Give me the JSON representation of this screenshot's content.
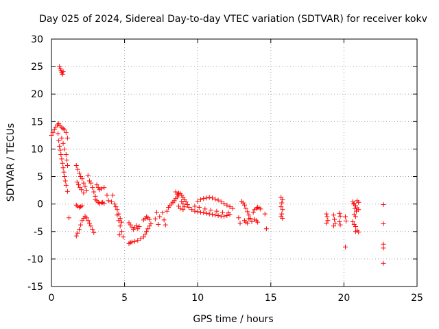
{
  "chart_data": {
    "type": "scatter",
    "title": "Day 025 of 2024, Sidereal Day-to-day VTEC variation (SDTVAR) for receiver kokv",
    "xlabel": "GPS time / hours",
    "ylabel": "SDTVAR / TECUs",
    "xlim": [
      0,
      25
    ],
    "ylim": [
      -15,
      30
    ],
    "xticks": [
      "0",
      "5",
      "10",
      "15",
      "20",
      "25"
    ],
    "yticks": [
      "-15",
      "-10",
      "-5",
      "0",
      "5",
      "10",
      "15",
      "20",
      "25",
      "30"
    ],
    "grid": true,
    "marker": "+",
    "marker_color": "#ff0000",
    "series": [
      {
        "name": "SDTVAR",
        "points": [
          [
            0.0,
            12.5
          ],
          [
            0.1,
            13.0
          ],
          [
            0.2,
            13.6
          ],
          [
            0.3,
            14.0
          ],
          [
            0.4,
            14.4
          ],
          [
            0.5,
            14.6
          ],
          [
            0.6,
            14.2
          ],
          [
            0.7,
            13.9
          ],
          [
            0.8,
            13.7
          ],
          [
            0.9,
            13.5
          ],
          [
            1.0,
            13.0
          ],
          [
            1.1,
            12.0
          ],
          [
            0.45,
            12.8
          ],
          [
            0.5,
            11.5
          ],
          [
            0.55,
            10.5
          ],
          [
            0.6,
            9.8
          ],
          [
            0.65,
            9.0
          ],
          [
            0.7,
            8.2
          ],
          [
            0.75,
            7.4
          ],
          [
            0.8,
            6.6
          ],
          [
            0.85,
            5.8
          ],
          [
            0.9,
            5.0
          ],
          [
            0.95,
            4.2
          ],
          [
            1.0,
            3.4
          ],
          [
            1.1,
            2.3
          ],
          [
            0.7,
            12.0
          ],
          [
            0.8,
            11.0
          ],
          [
            0.9,
            10.0
          ],
          [
            1.0,
            9.0
          ],
          [
            1.05,
            8.0
          ],
          [
            1.1,
            7.0
          ],
          [
            0.55,
            25.0
          ],
          [
            0.6,
            24.6
          ],
          [
            0.65,
            24.3
          ],
          [
            0.7,
            23.9
          ],
          [
            0.75,
            23.6
          ],
          [
            0.8,
            24.1
          ],
          [
            1.2,
            -2.5
          ],
          [
            1.7,
            7.0
          ],
          [
            1.8,
            6.3
          ],
          [
            1.9,
            5.6
          ],
          [
            2.0,
            5.0
          ],
          [
            2.1,
            4.6
          ],
          [
            2.2,
            3.8
          ],
          [
            2.3,
            3.2
          ],
          [
            2.4,
            2.5
          ],
          [
            1.75,
            4.0
          ],
          [
            1.85,
            3.5
          ],
          [
            1.95,
            3.0
          ],
          [
            2.05,
            2.6
          ],
          [
            2.2,
            2.0
          ],
          [
            1.7,
            -0.2
          ],
          [
            1.8,
            -0.4
          ],
          [
            1.9,
            -0.6
          ],
          [
            2.0,
            -0.5
          ],
          [
            2.1,
            -0.3
          ],
          [
            1.7,
            -5.8
          ],
          [
            1.8,
            -5.3
          ],
          [
            1.9,
            -4.6
          ],
          [
            2.0,
            -3.8
          ],
          [
            2.1,
            -3.0
          ],
          [
            2.2,
            -2.6
          ],
          [
            2.3,
            -2.2
          ],
          [
            2.4,
            -2.5
          ],
          [
            2.5,
            -3.0
          ],
          [
            2.6,
            -3.5
          ],
          [
            2.7,
            -4.0
          ],
          [
            2.8,
            -4.6
          ],
          [
            2.9,
            -5.2
          ],
          [
            2.5,
            5.2
          ],
          [
            2.6,
            4.2
          ],
          [
            2.7,
            3.8
          ],
          [
            2.8,
            3.0
          ],
          [
            2.9,
            2.2
          ],
          [
            3.0,
            1.4
          ],
          [
            3.1,
            3.5
          ],
          [
            3.2,
            3.0
          ],
          [
            3.3,
            2.6
          ],
          [
            3.4,
            2.8
          ],
          [
            3.6,
            3.0
          ],
          [
            3.0,
            0.8
          ],
          [
            3.1,
            0.6
          ],
          [
            3.2,
            0.3
          ],
          [
            3.3,
            0.1
          ],
          [
            3.4,
            0.2
          ],
          [
            3.5,
            0.3
          ],
          [
            3.6,
            0.1
          ],
          [
            3.8,
            1.6
          ],
          [
            4.2,
            1.6
          ],
          [
            3.9,
            0.6
          ],
          [
            4.1,
            0.4
          ],
          [
            4.3,
            0.0
          ],
          [
            4.4,
            -0.5
          ],
          [
            4.5,
            -1.0
          ],
          [
            4.6,
            -1.8
          ],
          [
            4.7,
            -2.6
          ],
          [
            4.8,
            -3.3
          ],
          [
            4.5,
            -2.0
          ],
          [
            4.6,
            -3.0
          ],
          [
            4.7,
            -4.0
          ],
          [
            4.8,
            -5.0
          ],
          [
            4.9,
            -6.0
          ],
          [
            4.65,
            -5.6
          ],
          [
            5.3,
            -3.4
          ],
          [
            5.4,
            -3.8
          ],
          [
            5.5,
            -4.2
          ],
          [
            5.6,
            -4.6
          ],
          [
            5.7,
            -4.3
          ],
          [
            5.8,
            -3.9
          ],
          [
            5.9,
            -4.5
          ],
          [
            6.0,
            -4.1
          ],
          [
            5.3,
            -7.2
          ],
          [
            5.4,
            -7.0
          ],
          [
            5.5,
            -6.9
          ],
          [
            5.7,
            -6.8
          ],
          [
            5.9,
            -6.6
          ],
          [
            6.1,
            -6.3
          ],
          [
            6.3,
            -6.0
          ],
          [
            6.4,
            -5.5
          ],
          [
            6.5,
            -5.0
          ],
          [
            6.6,
            -4.5
          ],
          [
            6.7,
            -4.0
          ],
          [
            6.8,
            -3.6
          ],
          [
            6.3,
            -2.9
          ],
          [
            6.4,
            -2.6
          ],
          [
            6.5,
            -2.3
          ],
          [
            6.6,
            -2.5
          ],
          [
            6.7,
            -2.8
          ],
          [
            7.1,
            -2.7
          ],
          [
            7.2,
            -1.5
          ],
          [
            7.3,
            -3.7
          ],
          [
            7.4,
            -2.3
          ],
          [
            7.6,
            -1.6
          ],
          [
            7.7,
            -2.9
          ],
          [
            7.8,
            -3.8
          ],
          [
            7.9,
            -1.3
          ],
          [
            8.0,
            -0.6
          ],
          [
            8.1,
            -0.3
          ],
          [
            8.2,
            0.0
          ],
          [
            8.3,
            0.3
          ],
          [
            8.4,
            0.6
          ],
          [
            8.5,
            1.0
          ],
          [
            8.6,
            1.3
          ],
          [
            8.7,
            1.6
          ],
          [
            8.8,
            1.9
          ],
          [
            8.9,
            1.6
          ],
          [
            9.0,
            1.2
          ],
          [
            9.1,
            0.8
          ],
          [
            9.2,
            0.4
          ],
          [
            9.3,
            -0.1
          ],
          [
            8.5,
            2.2
          ],
          [
            8.6,
            1.8
          ],
          [
            8.7,
            2.0
          ],
          [
            8.9,
            0.5
          ],
          [
            9.0,
            0.0
          ],
          [
            9.1,
            -0.5
          ],
          [
            8.7,
            -0.4
          ],
          [
            8.8,
            -0.8
          ],
          [
            9.0,
            -1.0
          ],
          [
            9.4,
            -0.6
          ],
          [
            9.6,
            -1.0
          ],
          [
            9.8,
            -1.3
          ],
          [
            10.0,
            -1.4
          ],
          [
            10.2,
            -1.5
          ],
          [
            10.4,
            -1.6
          ],
          [
            10.6,
            -1.7
          ],
          [
            10.8,
            -1.8
          ],
          [
            11.0,
            -1.9
          ],
          [
            11.2,
            -2.0
          ],
          [
            11.4,
            -2.1
          ],
          [
            11.6,
            -2.2
          ],
          [
            11.8,
            -2.2
          ],
          [
            12.0,
            -2.1
          ],
          [
            12.2,
            -1.9
          ],
          [
            10.0,
            0.5
          ],
          [
            10.2,
            0.8
          ],
          [
            10.4,
            1.0
          ],
          [
            10.6,
            1.1
          ],
          [
            10.8,
            1.2
          ],
          [
            11.0,
            1.1
          ],
          [
            11.2,
            0.9
          ],
          [
            11.4,
            0.7
          ],
          [
            11.6,
            0.4
          ],
          [
            11.8,
            0.1
          ],
          [
            12.0,
            -0.2
          ],
          [
            12.2,
            -0.5
          ],
          [
            12.4,
            -0.8
          ],
          [
            9.8,
            -0.4
          ],
          [
            10.1,
            -0.6
          ],
          [
            10.5,
            -0.9
          ],
          [
            10.9,
            -1.1
          ],
          [
            11.3,
            -1.3
          ],
          [
            11.7,
            -1.5
          ],
          [
            12.1,
            -1.6
          ],
          [
            12.8,
            -2.5
          ],
          [
            12.9,
            -3.5
          ],
          [
            13.0,
            0.5
          ],
          [
            13.1,
            0.2
          ],
          [
            13.2,
            -0.2
          ],
          [
            13.3,
            -0.8
          ],
          [
            13.4,
            -1.4
          ],
          [
            13.5,
            -2.0
          ],
          [
            13.6,
            -2.6
          ],
          [
            13.2,
            -3.0
          ],
          [
            13.3,
            -3.3
          ],
          [
            13.4,
            -3.5
          ],
          [
            13.5,
            -2.7
          ],
          [
            13.7,
            -3.2
          ],
          [
            13.8,
            -1.5
          ],
          [
            13.9,
            -1.0
          ],
          [
            14.0,
            -0.8
          ],
          [
            14.1,
            -0.6
          ],
          [
            14.2,
            -0.7
          ],
          [
            14.3,
            -0.9
          ],
          [
            13.9,
            -2.8
          ],
          [
            14.0,
            -3.0
          ],
          [
            14.1,
            -3.3
          ],
          [
            14.7,
            -4.5
          ],
          [
            14.6,
            -1.8
          ],
          [
            15.7,
            1.2
          ],
          [
            15.8,
            0.8
          ],
          [
            15.75,
            0.2
          ],
          [
            15.7,
            -0.5
          ],
          [
            15.8,
            -1.0
          ],
          [
            15.75,
            -1.8
          ],
          [
            15.7,
            -2.3
          ],
          [
            15.8,
            -2.6
          ],
          [
            18.8,
            -1.8
          ],
          [
            18.85,
            -2.3
          ],
          [
            18.9,
            -3.0
          ],
          [
            18.8,
            -3.5
          ],
          [
            19.3,
            -2.0
          ],
          [
            19.35,
            -2.8
          ],
          [
            19.4,
            -3.5
          ],
          [
            19.3,
            -4.0
          ],
          [
            19.7,
            -1.7
          ],
          [
            19.75,
            -2.2
          ],
          [
            19.7,
            -3.2
          ],
          [
            19.75,
            -3.8
          ],
          [
            20.1,
            -7.8
          ],
          [
            20.1,
            -2.3
          ],
          [
            20.15,
            -3.1
          ],
          [
            20.6,
            0.4
          ],
          [
            20.7,
            0.1
          ],
          [
            20.8,
            -0.3
          ],
          [
            20.9,
            -0.7
          ],
          [
            21.0,
            -1.0
          ],
          [
            20.65,
            0.0
          ],
          [
            20.75,
            -0.8
          ],
          [
            20.85,
            -1.3
          ],
          [
            20.7,
            -1.9
          ],
          [
            20.8,
            -2.3
          ],
          [
            20.6,
            -3.2
          ],
          [
            20.7,
            -3.7
          ],
          [
            20.8,
            -4.1
          ],
          [
            20.9,
            -4.8
          ],
          [
            21.0,
            -5.1
          ],
          [
            20.8,
            -5.0
          ],
          [
            20.9,
            0.6
          ],
          [
            21.0,
            0.3
          ],
          [
            22.7,
            -0.1
          ],
          [
            22.7,
            -3.6
          ],
          [
            22.7,
            -7.3
          ],
          [
            22.7,
            -8.0
          ],
          [
            22.7,
            -10.8
          ]
        ]
      }
    ]
  }
}
